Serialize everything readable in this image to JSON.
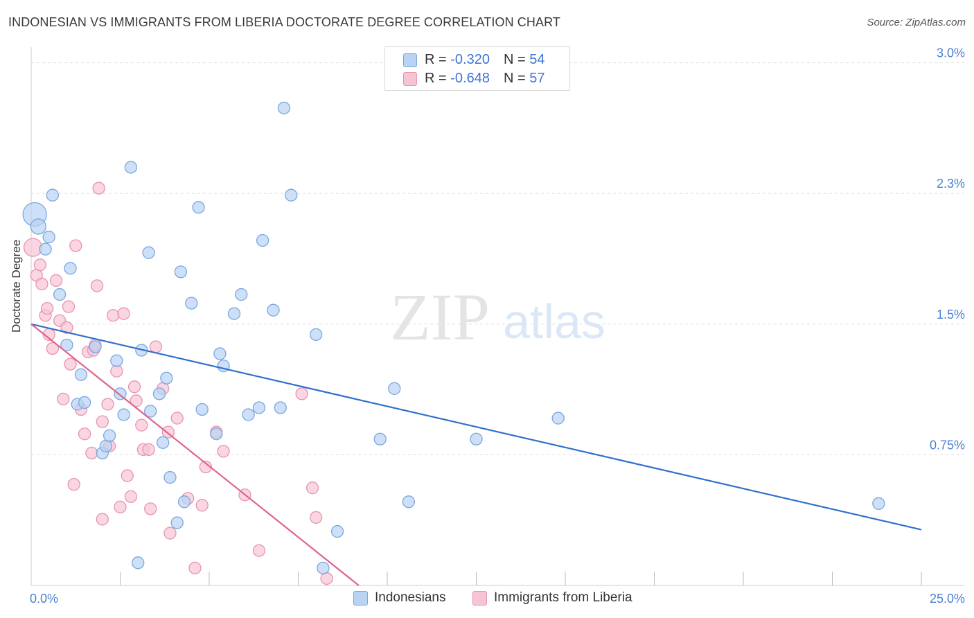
{
  "title": "INDONESIAN VS IMMIGRANTS FROM LIBERIA DOCTORATE DEGREE CORRELATION CHART",
  "source": "Source: ZipAtlas.com",
  "watermark": {
    "zip": "ZIP",
    "atlas": "atlas"
  },
  "legend": {
    "blue": {
      "r_label": "R = ",
      "r_value": "-0.320",
      "n_label": "N = ",
      "n_value": "54"
    },
    "pink": {
      "r_label": "R = ",
      "r_value": "-0.648",
      "n_label": "N = ",
      "n_value": "57"
    }
  },
  "bottom_legend": {
    "blue": "Indonesians",
    "pink": "Immigrants from Liberia"
  },
  "colors": {
    "blue_fill": "#b9d3f3",
    "blue_stroke": "#7aa7df",
    "blue_line": "#3070cc",
    "pink_fill": "#f7c4d4",
    "pink_stroke": "#e893b1",
    "pink_line": "#e0628f",
    "axis_text": "#4a80d4",
    "grid": "#dddddd"
  },
  "chart_data": {
    "type": "scatter",
    "title": "INDONESIAN VS IMMIGRANTS FROM LIBERIA DOCTORATE DEGREE CORRELATION CHART",
    "xlabel": "",
    "ylabel": "Doctorate Degree",
    "xlim": [
      0,
      25
    ],
    "ylim": [
      0,
      3.05
    ],
    "x_tick_labels": [
      "0.0%",
      "25.0%"
    ],
    "y_ticks": [
      0.75,
      1.5,
      2.25,
      3.0
    ],
    "y_tick_labels": [
      "0.75%",
      "1.5%",
      "2.3%",
      "3.0%"
    ],
    "grid": true,
    "series": [
      {
        "name": "Indonesians",
        "points": [
          [
            0.1,
            2.13
          ],
          [
            0.2,
            2.06
          ],
          [
            0.4,
            1.93
          ],
          [
            0.5,
            2.0
          ],
          [
            0.6,
            2.24
          ],
          [
            0.8,
            1.67
          ],
          [
            1.0,
            1.38
          ],
          [
            1.1,
            1.82
          ],
          [
            1.3,
            1.04
          ],
          [
            1.4,
            1.21
          ],
          [
            1.5,
            1.05
          ],
          [
            1.8,
            1.37
          ],
          [
            2.0,
            0.76
          ],
          [
            2.1,
            0.8
          ],
          [
            2.2,
            0.86
          ],
          [
            2.4,
            1.29
          ],
          [
            2.5,
            1.1
          ],
          [
            2.6,
            0.98
          ],
          [
            2.8,
            2.4
          ],
          [
            3.0,
            0.13
          ],
          [
            3.1,
            1.35
          ],
          [
            3.3,
            1.91
          ],
          [
            3.35,
            1.0
          ],
          [
            3.6,
            1.1
          ],
          [
            3.7,
            0.82
          ],
          [
            3.8,
            1.19
          ],
          [
            3.9,
            0.62
          ],
          [
            4.1,
            0.36
          ],
          [
            4.2,
            1.8
          ],
          [
            4.3,
            0.48
          ],
          [
            4.5,
            1.62
          ],
          [
            4.7,
            2.17
          ],
          [
            4.8,
            1.01
          ],
          [
            5.2,
            0.87
          ],
          [
            5.3,
            1.33
          ],
          [
            5.4,
            1.26
          ],
          [
            5.7,
            1.56
          ],
          [
            5.9,
            1.67
          ],
          [
            6.1,
            0.98
          ],
          [
            6.4,
            1.02
          ],
          [
            6.5,
            1.98
          ],
          [
            6.8,
            1.58
          ],
          [
            7.0,
            1.02
          ],
          [
            7.1,
            2.74
          ],
          [
            7.3,
            2.24
          ],
          [
            8.0,
            1.44
          ],
          [
            8.2,
            0.1
          ],
          [
            8.6,
            0.31
          ],
          [
            9.8,
            0.84
          ],
          [
            10.2,
            1.13
          ],
          [
            10.6,
            0.48
          ],
          [
            12.5,
            0.84
          ],
          [
            14.8,
            0.96
          ],
          [
            23.8,
            0.47
          ]
        ],
        "trend": {
          "x": [
            0,
            25
          ],
          "y": [
            1.5,
            0.32
          ]
        }
      },
      {
        "name": "Immigrants from Liberia",
        "points": [
          [
            0.05,
            1.94
          ],
          [
            0.15,
            1.78
          ],
          [
            0.25,
            1.84
          ],
          [
            0.3,
            1.73
          ],
          [
            0.4,
            1.55
          ],
          [
            0.45,
            1.59
          ],
          [
            0.5,
            1.44
          ],
          [
            0.6,
            1.36
          ],
          [
            0.7,
            1.75
          ],
          [
            0.8,
            1.52
          ],
          [
            0.9,
            1.07
          ],
          [
            1.0,
            1.48
          ],
          [
            1.05,
            1.6
          ],
          [
            1.1,
            1.27
          ],
          [
            1.2,
            0.58
          ],
          [
            1.25,
            1.95
          ],
          [
            1.4,
            1.01
          ],
          [
            1.5,
            0.87
          ],
          [
            1.6,
            1.34
          ],
          [
            1.7,
            0.76
          ],
          [
            1.75,
            1.35
          ],
          [
            1.8,
            1.38
          ],
          [
            1.85,
            1.72
          ],
          [
            1.9,
            2.28
          ],
          [
            2.0,
            0.94
          ],
          [
            2.0,
            0.38
          ],
          [
            2.15,
            1.04
          ],
          [
            2.2,
            0.8
          ],
          [
            2.3,
            1.55
          ],
          [
            2.4,
            1.23
          ],
          [
            2.5,
            0.45
          ],
          [
            2.6,
            1.56
          ],
          [
            2.7,
            0.63
          ],
          [
            2.8,
            0.51
          ],
          [
            2.9,
            1.14
          ],
          [
            2.95,
            1.06
          ],
          [
            3.1,
            0.92
          ],
          [
            3.15,
            0.78
          ],
          [
            3.3,
            0.78
          ],
          [
            3.35,
            0.44
          ],
          [
            3.5,
            1.37
          ],
          [
            3.7,
            1.13
          ],
          [
            3.85,
            0.88
          ],
          [
            3.9,
            0.3
          ],
          [
            4.1,
            0.96
          ],
          [
            4.4,
            0.5
          ],
          [
            4.6,
            0.1
          ],
          [
            4.8,
            0.46
          ],
          [
            4.9,
            0.68
          ],
          [
            5.2,
            0.88
          ],
          [
            5.4,
            0.77
          ],
          [
            6.0,
            0.52
          ],
          [
            6.4,
            0.2
          ],
          [
            7.6,
            1.1
          ],
          [
            7.9,
            0.56
          ],
          [
            8.0,
            0.39
          ],
          [
            8.3,
            0.04
          ]
        ],
        "trend": {
          "x": [
            0,
            9.2
          ],
          "y": [
            1.5,
            0.0
          ]
        }
      }
    ]
  }
}
